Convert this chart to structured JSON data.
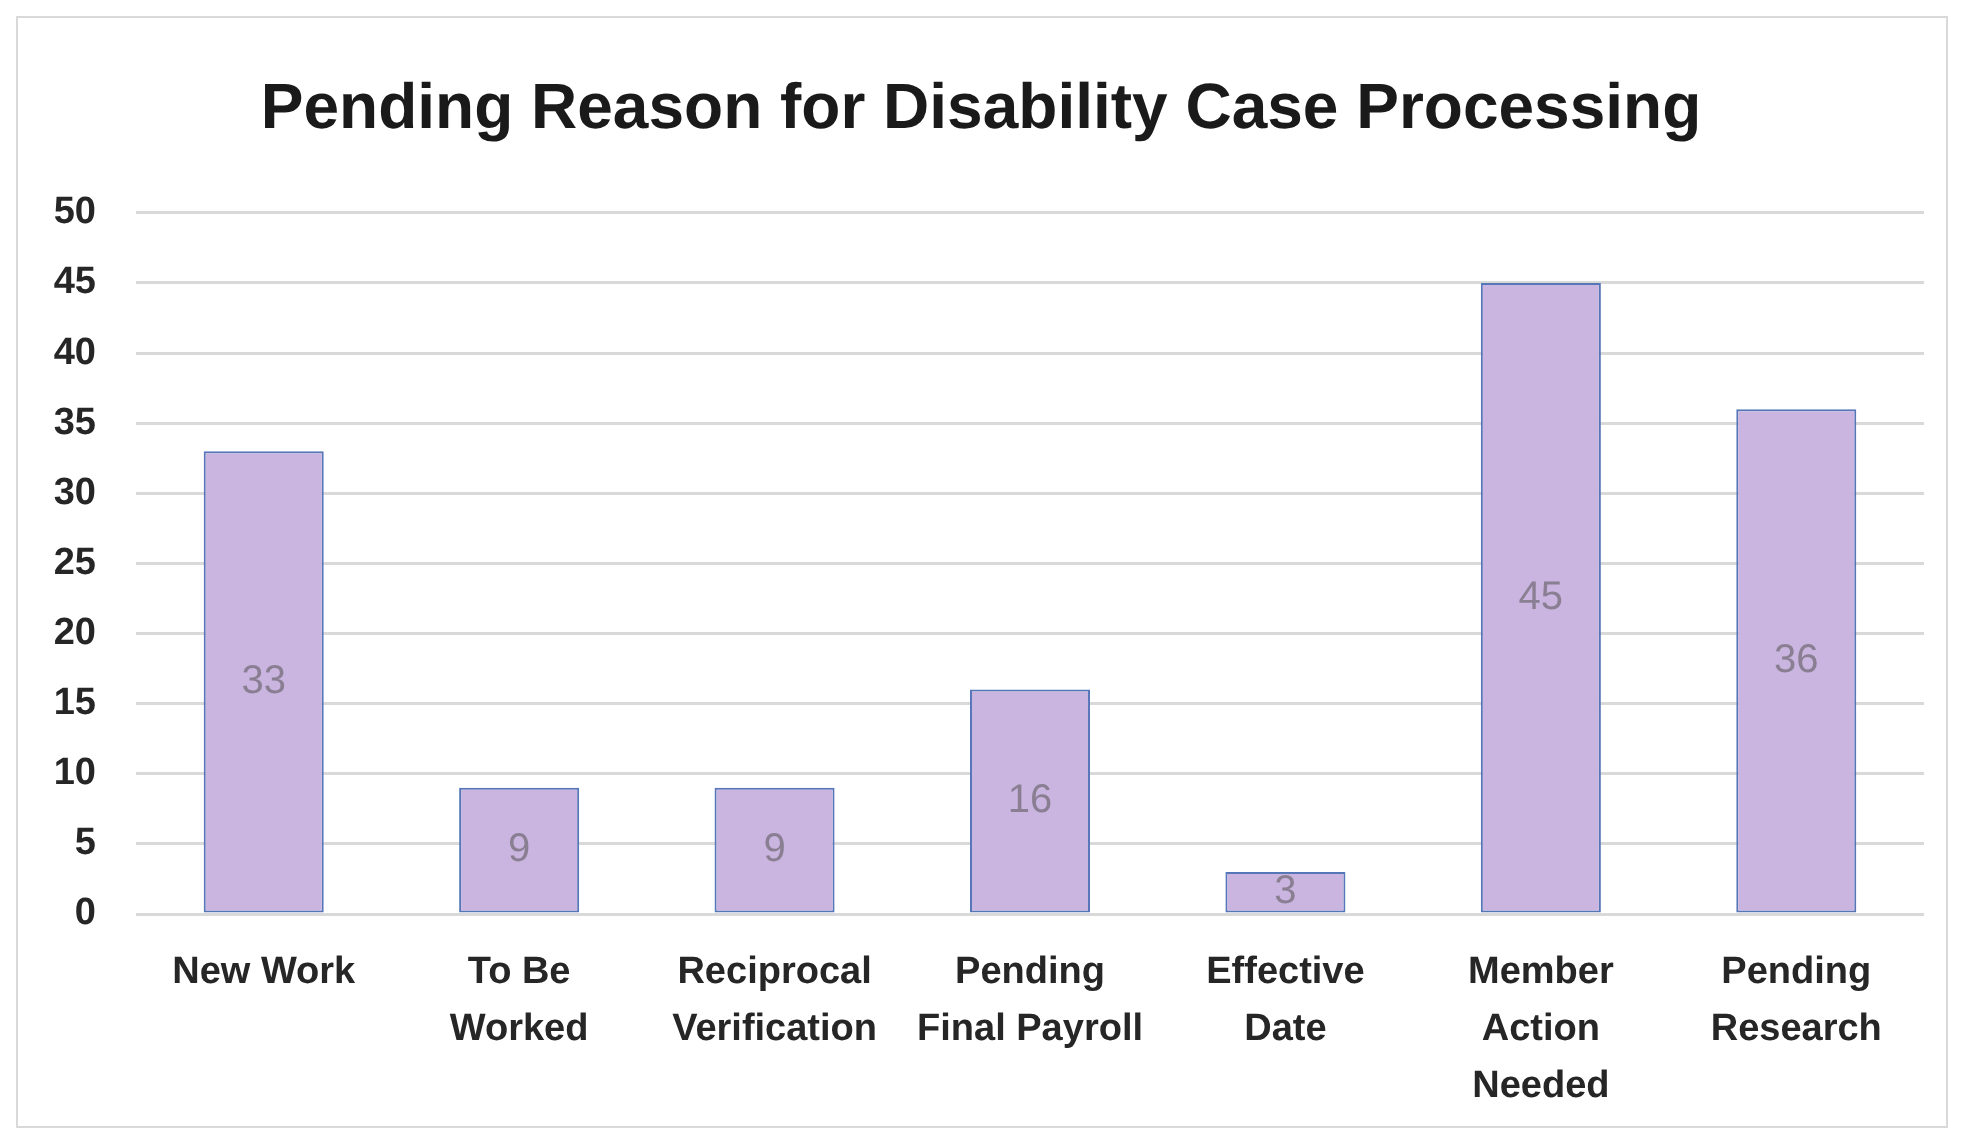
{
  "chart_data": {
    "type": "bar",
    "title": "Pending Reason for Disability Case Processing",
    "categories": [
      "New Work",
      "To Be Worked",
      "Reciprocal Verification",
      "Pending Final Payroll",
      "Effective Date",
      "Member Action Needed",
      "Pending Research"
    ],
    "values": [
      33,
      9,
      9,
      16,
      3,
      45,
      36
    ],
    "color": "#c9b5e0",
    "ylim": [
      0,
      50
    ],
    "yticks": [
      0,
      5,
      10,
      15,
      20,
      25,
      30,
      35,
      40,
      45,
      50
    ],
    "grid": "y",
    "data_labels": true
  }
}
